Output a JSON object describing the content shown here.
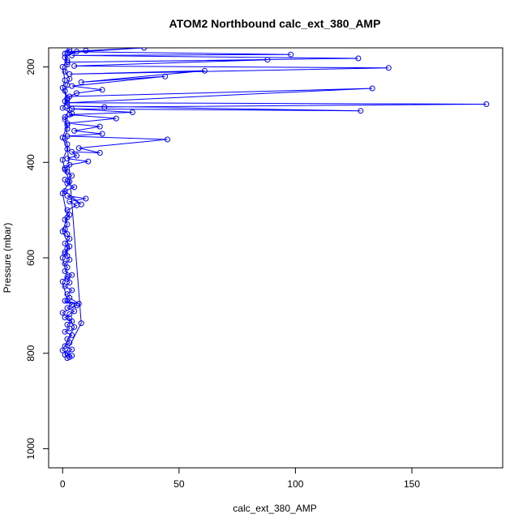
{
  "chart_data": {
    "type": "scatter",
    "title": "ATOM2 Northbound calc_ext_380_AMP",
    "xlabel": "calc_ext_380_AMP",
    "ylabel": "Pressure (mbar)",
    "xlim": [
      -6,
      189
    ],
    "ylim": [
      1040,
      160
    ],
    "y_reversed": true,
    "x_ticks": [
      0,
      50,
      100,
      150
    ],
    "y_ticks": [
      200,
      400,
      600,
      800,
      1000
    ],
    "x_tick_labels": [
      "0",
      "50",
      "100",
      "150"
    ],
    "y_tick_labels": [
      "200",
      "400",
      "600",
      "800",
      "1000"
    ],
    "grid": false,
    "legend": "none",
    "series": [
      {
        "color": "#0000ff",
        "marker": "open-circle",
        "connected": true,
        "points": [
          [
            3,
            808
          ],
          [
            2,
            800
          ],
          [
            4,
            792
          ],
          [
            1,
            785
          ],
          [
            3,
            778
          ],
          [
            2,
            770
          ],
          [
            4,
            762
          ],
          [
            1,
            755
          ],
          [
            3,
            748
          ],
          [
            2,
            740
          ],
          [
            4,
            733
          ],
          [
            1,
            725
          ],
          [
            3,
            718
          ],
          [
            5,
            712
          ],
          [
            2,
            705
          ],
          [
            4,
            698
          ],
          [
            1,
            690
          ],
          [
            7,
            696
          ],
          [
            3,
            684
          ],
          [
            2,
            676
          ],
          [
            4,
            668
          ],
          [
            1,
            660
          ],
          [
            3,
            652
          ],
          [
            2,
            644
          ],
          [
            4,
            636
          ],
          [
            1,
            628
          ],
          [
            2,
            620
          ],
          [
            1,
            612
          ],
          [
            3,
            604
          ],
          [
            2,
            596
          ],
          [
            1,
            588
          ],
          [
            2,
            580
          ],
          [
            1,
            570
          ],
          [
            3,
            560
          ],
          [
            2,
            550
          ],
          [
            1,
            540
          ],
          [
            2,
            530
          ],
          [
            1,
            520
          ],
          [
            3,
            510
          ],
          [
            2,
            500
          ],
          [
            6,
            490
          ],
          [
            3,
            482
          ],
          [
            10,
            476
          ],
          [
            2,
            470
          ],
          [
            8,
            488
          ],
          [
            1,
            460
          ],
          [
            5,
            452
          ],
          [
            2,
            444
          ],
          [
            1,
            436
          ],
          [
            4,
            428
          ],
          [
            2,
            420
          ],
          [
            1,
            412
          ],
          [
            3,
            405
          ],
          [
            11,
            398
          ],
          [
            2,
            392
          ],
          [
            6,
            386
          ],
          [
            4,
            378
          ],
          [
            16,
            380
          ],
          [
            7,
            370
          ],
          [
            45,
            352
          ],
          [
            2,
            345
          ],
          [
            17,
            340
          ],
          [
            5,
            334
          ],
          [
            16,
            325
          ],
          [
            2,
            318
          ],
          [
            23,
            308
          ],
          [
            3,
            300
          ],
          [
            30,
            295
          ],
          [
            4,
            288
          ],
          [
            128,
            292
          ],
          [
            2,
            282
          ],
          [
            18,
            284
          ],
          [
            182,
            278
          ],
          [
            2,
            275
          ],
          [
            133,
            245
          ],
          [
            3,
            262
          ],
          [
            6,
            255
          ],
          [
            17,
            248
          ],
          [
            4,
            240
          ],
          [
            44,
            220
          ],
          [
            8,
            232
          ],
          [
            61,
            208
          ],
          [
            3,
            215
          ],
          [
            140,
            202
          ],
          [
            5,
            198
          ],
          [
            88,
            185
          ],
          [
            2,
            190
          ],
          [
            127,
            182
          ],
          [
            4,
            176
          ],
          [
            98,
            174
          ],
          [
            3,
            168
          ],
          [
            10,
            166
          ],
          [
            35,
            160
          ],
          [
            2,
            170
          ],
          [
            6,
            168
          ],
          [
            1,
            180
          ],
          [
            2,
            195
          ],
          [
            1,
            210
          ],
          [
            3,
            225
          ],
          [
            2,
            238
          ],
          [
            1,
            250
          ],
          [
            2,
            265
          ],
          [
            1,
            272
          ],
          [
            3,
            290
          ],
          [
            1,
            305
          ],
          [
            2,
            330
          ],
          [
            1,
            350
          ],
          [
            2,
            362
          ],
          [
            8,
            737
          ],
          [
            1,
            803
          ],
          [
            2,
            810
          ],
          [
            4,
            805
          ],
          [
            0,
            794
          ],
          [
            5,
            745
          ],
          [
            3,
            727
          ],
          [
            0,
            715
          ],
          [
            6,
            700
          ],
          [
            2,
            690
          ],
          [
            0,
            650
          ],
          [
            2,
            640
          ],
          [
            0,
            600
          ],
          [
            1,
            592
          ],
          [
            3,
            576
          ],
          [
            0,
            545
          ],
          [
            2,
            515
          ],
          [
            0,
            465
          ],
          [
            3,
            440
          ],
          [
            1,
            415
          ],
          [
            0,
            395
          ],
          [
            2,
            372
          ],
          [
            0,
            348
          ],
          [
            2,
            322
          ],
          [
            1,
            310
          ],
          [
            4,
            298
          ],
          [
            0,
            286
          ],
          [
            2,
            268
          ],
          [
            0,
            244
          ],
          [
            1,
            228
          ],
          [
            0,
            200
          ],
          [
            2,
            186
          ],
          [
            1,
            172
          ],
          [
            3,
            164
          ]
        ]
      }
    ]
  }
}
